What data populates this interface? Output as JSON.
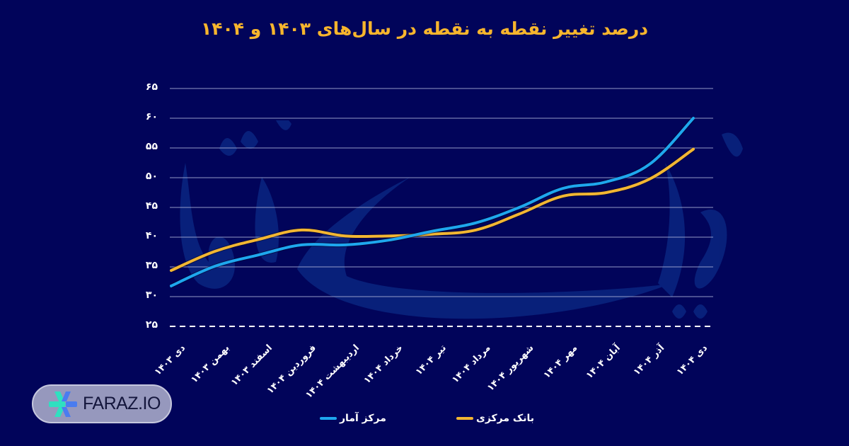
{
  "header": {
    "title": "درصد تغییر نقطه به نقطه در سال‌های ۱۴۰۳ و ۱۴۰۴"
  },
  "colors": {
    "background": "#01045a",
    "title": "#f7b52d",
    "series_markaz_amar": "#1ea7ee",
    "series_bank_markazi": "#f2b632",
    "gridline": "#b8bde0"
  },
  "y_axis": {
    "ticks": [
      "۶۵",
      "۶۰",
      "۵۵",
      "۵۰",
      "۴۵",
      "۴۰",
      "۳۵",
      "۳۰",
      "۲۵"
    ]
  },
  "x_axis": {
    "ticks": [
      "دی ۱۴۰۳",
      "بهمن ۱۴۰۳",
      "اسفند ۱۴۰۳",
      "فروردین ۱۴۰۴",
      "اردیبهشت ۱۴۰۴",
      "خرداد ۱۴۰۴",
      "تیر ۱۴۰۴",
      "مرداد ۱۴۰۴",
      "شهریور ۱۴۰۴",
      "مهر ۱۴۰۴",
      "آبان ۱۴۰۴",
      "آذر ۱۴۰۴",
      "دی ۱۴۰۴"
    ]
  },
  "legend": {
    "items": [
      {
        "label": "مرکز آمار",
        "color": "#1ea7ee"
      },
      {
        "label": "بانک مرکزی",
        "color": "#f2b632"
      }
    ]
  },
  "brand": {
    "name": "FARAZ.IO"
  },
  "chart_data": {
    "type": "line",
    "title": "درصد تغییر نقطه به نقطه در سال‌های ۱۴۰۳ و ۱۴۰۴",
    "xlabel": "",
    "ylabel": "",
    "ylim": [
      25,
      65
    ],
    "yticks": [
      25,
      30,
      35,
      40,
      45,
      50,
      55,
      60,
      65
    ],
    "grid": true,
    "legend_position": "bottom",
    "categories": [
      "دی ۱۴۰۳",
      "بهمن ۱۴۰۳",
      "اسفند ۱۴۰۳",
      "فروردین ۱۴۰۴",
      "اردیبهشت ۱۴۰۴",
      "خرداد ۱۴۰۴",
      "تیر ۱۴۰۴",
      "مرداد ۱۴۰۴",
      "شهریور ۱۴۰۴",
      "مهر ۱۴۰۴",
      "آبان ۱۴۰۴",
      "آذر ۱۴۰۴",
      "دی ۱۴۰۴"
    ],
    "series": [
      {
        "name": "مرکز آمار",
        "color": "#1ea7ee",
        "values": [
          31.8,
          35.1,
          37.0,
          38.7,
          38.7,
          39.5,
          41.0,
          42.4,
          45.0,
          48.2,
          49.3,
          52.3,
          60.0
        ]
      },
      {
        "name": "بانک مرکزی",
        "color": "#f2b632",
        "values": [
          34.4,
          37.6,
          39.6,
          41.2,
          40.2,
          40.2,
          40.5,
          41.2,
          43.9,
          46.9,
          47.5,
          49.8,
          54.8
        ]
      }
    ]
  }
}
